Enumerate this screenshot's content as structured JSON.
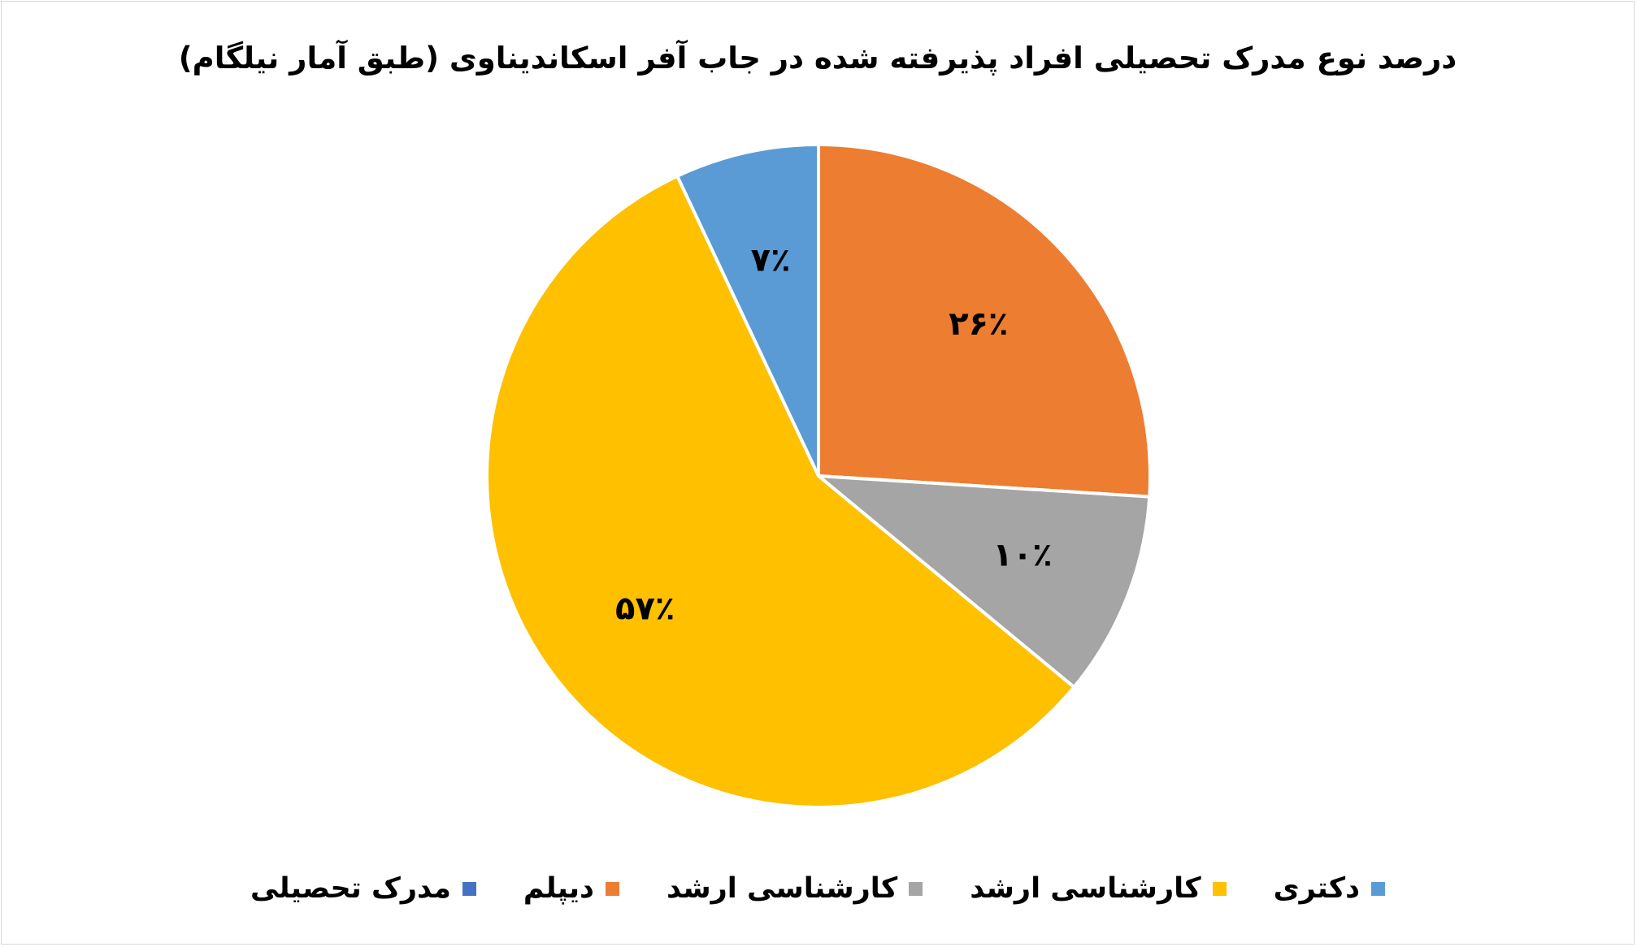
{
  "chart_data": {
    "type": "pie",
    "title": "درصد نوع مدرک تحصیلی افراد پذیرفته شده در جاب آفر اسکاندیناوی (طبق آمار نیلگام)",
    "slices": [
      {
        "name": "دیپلم",
        "value": 26,
        "label": "۲۶٪",
        "color": "#ed7d31"
      },
      {
        "name": "کارشناسی ارشد",
        "value": 10,
        "label": "۱۰٪",
        "color": "#a5a5a5"
      },
      {
        "name": "کارشناسی ارشد",
        "value": 57,
        "label": "۵۷٪",
        "color": "#ffc000"
      },
      {
        "name": "دکتری",
        "value": 7,
        "label": "۷٪",
        "color": "#5b9bd5"
      }
    ],
    "legend": {
      "placement": "bottom",
      "items": [
        {
          "label": "دکتری",
          "color": "#5b9bd5"
        },
        {
          "label": "کارشناسی ارشد",
          "color": "#ffc000"
        },
        {
          "label": "کارشناسی ارشد",
          "color": "#a5a5a5"
        },
        {
          "label": "دیپلم",
          "color": "#ed7d31"
        },
        {
          "label": "مدرک تحصیلی",
          "color": "#4472c4"
        }
      ]
    }
  }
}
